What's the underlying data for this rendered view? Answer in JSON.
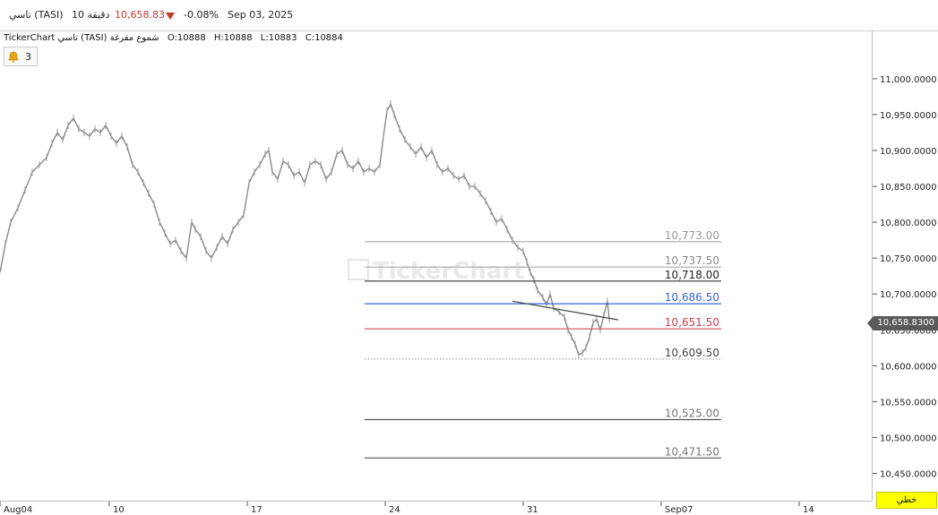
{
  "header": {
    "symbol": "تاسي (TASI)",
    "interval": "10 دقيقة",
    "price": "10,658.83",
    "change": "-0.08%",
    "date": "Sep 03, 2025",
    "price_color": "#c0392b"
  },
  "info": {
    "chart_title": "TickerChart تاسي (TASI) شموع مفرغة",
    "open": "O:10888",
    "high": "H:10888",
    "low": "L:10883",
    "close": "C:10884"
  },
  "alerts": {
    "icon": "bell-icon",
    "count": "3"
  },
  "watermark": "TickerChart",
  "current_price_label": "10,658.8300",
  "linetype_button": "خطي",
  "chart_data": {
    "type": "line",
    "y_axis_ticks": [
      "11,000.0000",
      "10,950.0000",
      "10,900.0000",
      "10,850.0000",
      "10,800.0000",
      "10,750.0000",
      "10,700.0000",
      "10,650.0000",
      "10,600.0000",
      "10,550.0000",
      "10,500.0000",
      "10,450.0000"
    ],
    "y_tick_values": [
      11000,
      10950,
      10900,
      10850,
      10800,
      10750,
      10700,
      10650,
      10600,
      10550,
      10500,
      10450
    ],
    "ylim": [
      10412,
      11066
    ],
    "x_tick_labels": [
      "Aug04",
      "10",
      "17",
      "24",
      "31",
      "Sep07",
      "14"
    ],
    "x_index_ticks": [
      0,
      122,
      276,
      430,
      584,
      738,
      892
    ],
    "x_range": [
      0,
      973
    ],
    "price_series": [
      [
        0,
        10730
      ],
      [
        6,
        10770
      ],
      [
        12,
        10800
      ],
      [
        20,
        10820
      ],
      [
        28,
        10845
      ],
      [
        36,
        10870
      ],
      [
        44,
        10880
      ],
      [
        52,
        10890
      ],
      [
        58,
        10910
      ],
      [
        64,
        10925
      ],
      [
        70,
        10915
      ],
      [
        76,
        10935
      ],
      [
        82,
        10945
      ],
      [
        88,
        10930
      ],
      [
        94,
        10925
      ],
      [
        100,
        10920
      ],
      [
        106,
        10930
      ],
      [
        112,
        10925
      ],
      [
        118,
        10935
      ],
      [
        124,
        10920
      ],
      [
        130,
        10910
      ],
      [
        136,
        10920
      ],
      [
        142,
        10905
      ],
      [
        148,
        10880
      ],
      [
        154,
        10870
      ],
      [
        160,
        10855
      ],
      [
        166,
        10840
      ],
      [
        172,
        10825
      ],
      [
        178,
        10800
      ],
      [
        184,
        10785
      ],
      [
        190,
        10770
      ],
      [
        196,
        10775
      ],
      [
        202,
        10760
      ],
      [
        208,
        10750
      ],
      [
        214,
        10800
      ],
      [
        218,
        10790
      ],
      [
        224,
        10780
      ],
      [
        230,
        10760
      ],
      [
        236,
        10750
      ],
      [
        242,
        10765
      ],
      [
        248,
        10780
      ],
      [
        254,
        10770
      ],
      [
        260,
        10790
      ],
      [
        266,
        10800
      ],
      [
        272,
        10810
      ],
      [
        278,
        10855
      ],
      [
        284,
        10870
      ],
      [
        290,
        10880
      ],
      [
        296,
        10895
      ],
      [
        300,
        10900
      ],
      [
        304,
        10870
      ],
      [
        310,
        10860
      ],
      [
        316,
        10885
      ],
      [
        322,
        10880
      ],
      [
        328,
        10865
      ],
      [
        334,
        10870
      ],
      [
        340,
        10855
      ],
      [
        346,
        10880
      ],
      [
        352,
        10885
      ],
      [
        358,
        10880
      ],
      [
        364,
        10860
      ],
      [
        370,
        10870
      ],
      [
        376,
        10895
      ],
      [
        382,
        10900
      ],
      [
        388,
        10880
      ],
      [
        394,
        10875
      ],
      [
        400,
        10885
      ],
      [
        406,
        10870
      ],
      [
        412,
        10875
      ],
      [
        418,
        10870
      ],
      [
        424,
        10880
      ],
      [
        428,
        10920
      ],
      [
        432,
        10955
      ],
      [
        436,
        10965
      ],
      [
        440,
        10950
      ],
      [
        446,
        10930
      ],
      [
        452,
        10915
      ],
      [
        458,
        10905
      ],
      [
        464,
        10895
      ],
      [
        470,
        10905
      ],
      [
        476,
        10890
      ],
      [
        482,
        10900
      ],
      [
        488,
        10880
      ],
      [
        494,
        10870
      ],
      [
        500,
        10875
      ],
      [
        506,
        10865
      ],
      [
        512,
        10860
      ],
      [
        518,
        10865
      ],
      [
        524,
        10850
      ],
      [
        530,
        10850
      ],
      [
        536,
        10840
      ],
      [
        542,
        10830
      ],
      [
        548,
        10815
      ],
      [
        554,
        10800
      ],
      [
        560,
        10805
      ],
      [
        566,
        10790
      ],
      [
        572,
        10775
      ],
      [
        578,
        10765
      ],
      [
        584,
        10760
      ],
      [
        588,
        10745
      ],
      [
        592,
        10730
      ],
      [
        596,
        10720
      ],
      [
        600,
        10705
      ],
      [
        606,
        10695
      ],
      [
        610,
        10685
      ],
      [
        614,
        10700
      ],
      [
        618,
        10680
      ],
      [
        624,
        10675
      ],
      [
        630,
        10668
      ],
      [
        634,
        10650
      ],
      [
        638,
        10640
      ],
      [
        642,
        10630
      ],
      [
        646,
        10615
      ],
      [
        650,
        10618
      ],
      [
        654,
        10625
      ],
      [
        658,
        10640
      ],
      [
        662,
        10660
      ],
      [
        666,
        10665
      ],
      [
        670,
        10650
      ],
      [
        674,
        10670
      ],
      [
        678,
        10690
      ],
      [
        680,
        10665
      ]
    ],
    "levels": [
      {
        "label": "10,773.00",
        "value": 10773,
        "color": "#aaaaaa",
        "style": "solid",
        "text_color": "#999999"
      },
      {
        "label": "10,737.50",
        "value": 10737.5,
        "color": "#aaaaaa",
        "style": "solid",
        "text_color": "#888888"
      },
      {
        "label": "10,718.00",
        "value": 10718,
        "color": "#333333",
        "style": "solid",
        "text_color": "#222222"
      },
      {
        "label": "10,686.50",
        "value": 10686.5,
        "color": "#3a63d8",
        "style": "solid",
        "text_color": "#3a63d8"
      },
      {
        "label": "10,651.50",
        "value": 10651.5,
        "color": "#e05a6a",
        "style": "solid",
        "text_color": "#d43c4c"
      },
      {
        "label": "10,609.50",
        "value": 10609.5,
        "color": "#999999",
        "style": "dotted",
        "text_color": "#444444"
      },
      {
        "label": "10,525.00",
        "value": 10525,
        "color": "#555555",
        "style": "solid",
        "text_color": "#777777"
      },
      {
        "label": "10,471.50",
        "value": 10471.5,
        "color": "#555555",
        "style": "solid",
        "text_color": "#777777"
      }
    ],
    "level_x_range": [
      407,
      805
    ],
    "trendline": [
      [
        572,
        10690
      ],
      [
        690,
        10664
      ]
    ],
    "current_price": 10658.83,
    "grid": false
  }
}
